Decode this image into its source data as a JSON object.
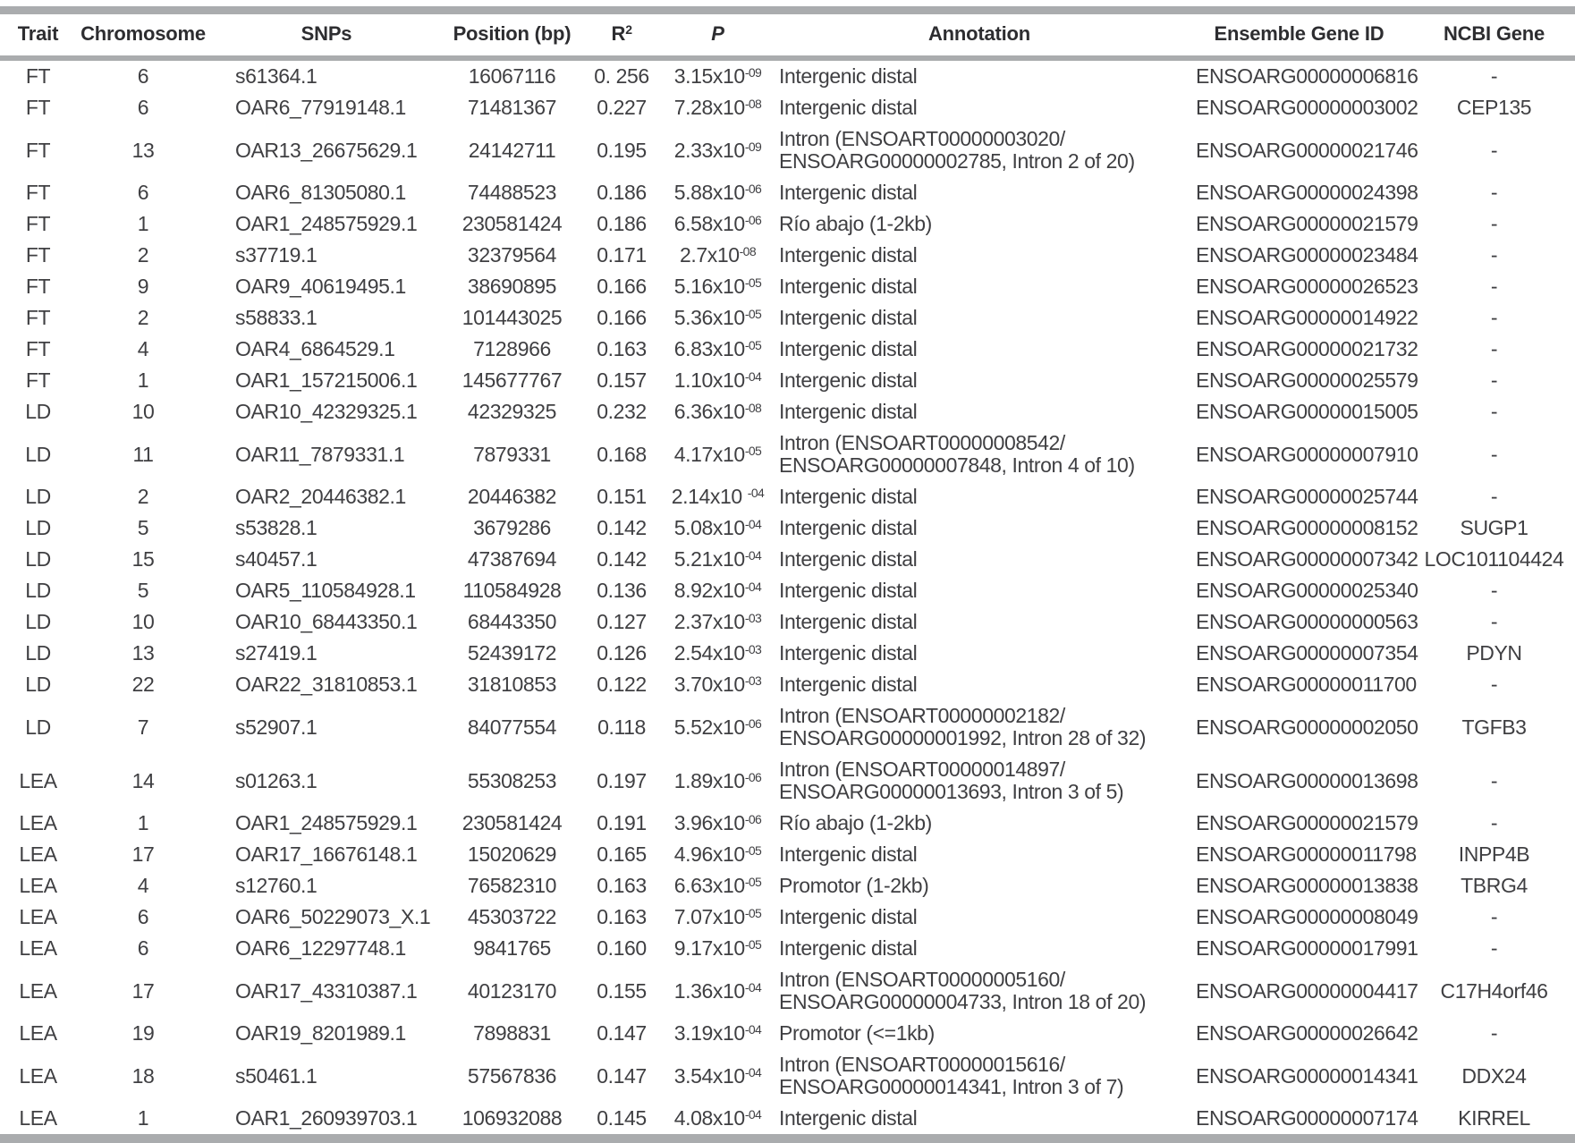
{
  "table": {
    "header": {
      "trait": "Trait",
      "chromosome": "Chromosome",
      "snps": "SNPs",
      "position": "Position (bp)",
      "r2_base": "R",
      "r2_sup": "2",
      "p": "P",
      "annotation": "Annotation",
      "gene_id": "Ensemble Gene ID",
      "ncbi": "NCBI Gene"
    },
    "rows": [
      {
        "trait": "FT",
        "chr": "6",
        "snp": "s61364.1",
        "pos": "16067116",
        "r2": "0. 256",
        "p_base": "3.15x10",
        "p_sup": "-09",
        "ann": [
          "Intergenic distal"
        ],
        "gene": "ENSOARG00000006816",
        "ncbi": "-"
      },
      {
        "trait": "FT",
        "chr": "6",
        "snp": "OAR6_77919148.1",
        "pos": "71481367",
        "r2": "0.227",
        "p_base": "7.28x10",
        "p_sup": "-08",
        "ann": [
          "Intergenic distal"
        ],
        "gene": "ENSOARG00000003002",
        "ncbi": "CEP135"
      },
      {
        "trait": "FT",
        "chr": "13",
        "snp": "OAR13_26675629.1",
        "pos": "24142711",
        "r2": "0.195",
        "p_base": "2.33x10",
        "p_sup": "-09",
        "ann": [
          "Intron (ENSOART00000003020/",
          "ENSOARG00000002785, Intron 2 of 20)"
        ],
        "gene": "ENSOARG00000021746",
        "ncbi": "-"
      },
      {
        "trait": "FT",
        "chr": "6",
        "snp": "OAR6_81305080.1",
        "pos": "74488523",
        "r2": "0.186",
        "p_base": "5.88x10",
        "p_sup": "-06",
        "ann": [
          "Intergenic distal"
        ],
        "gene": "ENSOARG00000024398",
        "ncbi": "-"
      },
      {
        "trait": "FT",
        "chr": "1",
        "snp": "OAR1_248575929.1",
        "pos": "230581424",
        "r2": "0.186",
        "p_base": "6.58x10",
        "p_sup": "-06",
        "ann": [
          "Río abajo (1-2kb)"
        ],
        "gene": "ENSOARG00000021579",
        "ncbi": "-"
      },
      {
        "trait": "FT",
        "chr": "2",
        "snp": "s37719.1",
        "pos": "32379564",
        "r2": "0.171",
        "p_base": "2.7x10",
        "p_sup": "-08",
        "ann": [
          "Intergenic distal"
        ],
        "gene": "ENSOARG00000023484",
        "ncbi": "-"
      },
      {
        "trait": "FT",
        "chr": "9",
        "snp": "OAR9_40619495.1",
        "pos": "38690895",
        "r2": "0.166",
        "p_base": "5.16x10",
        "p_sup": "-05",
        "ann": [
          "Intergenic distal"
        ],
        "gene": "ENSOARG00000026523",
        "ncbi": "-"
      },
      {
        "trait": "FT",
        "chr": "2",
        "snp": "s58833.1",
        "pos": "101443025",
        "r2": "0.166",
        "p_base": "5.36x10",
        "p_sup": "-05",
        "ann": [
          "Intergenic distal"
        ],
        "gene": "ENSOARG00000014922",
        "ncbi": "-"
      },
      {
        "trait": "FT",
        "chr": "4",
        "snp": "OAR4_6864529.1",
        "pos": "7128966",
        "r2": "0.163",
        "p_base": "6.83x10",
        "p_sup": "-05",
        "ann": [
          "Intergenic distal"
        ],
        "gene": "ENSOARG00000021732",
        "ncbi": "-"
      },
      {
        "trait": "FT",
        "chr": "1",
        "snp": "OAR1_157215006.1",
        "pos": "145677767",
        "r2": "0.157",
        "p_base": "1.10x10",
        "p_sup": "-04",
        "ann": [
          "Intergenic distal"
        ],
        "gene": "ENSOARG00000025579",
        "ncbi": "-"
      },
      {
        "trait": "LD",
        "chr": "10",
        "snp": "OAR10_42329325.1",
        "pos": "42329325",
        "r2": "0.232",
        "p_base": "6.36x10",
        "p_sup": "-08",
        "ann": [
          "Intergenic distal"
        ],
        "gene": "ENSOARG00000015005",
        "ncbi": "-"
      },
      {
        "trait": "LD",
        "chr": "11",
        "snp": "OAR11_7879331.1",
        "pos": "7879331",
        "r2": "0.168",
        "p_base": "4.17x10",
        "p_sup": "-05",
        "ann": [
          "Intron (ENSOART00000008542/",
          "ENSOARG00000007848, Intron 4 of 10)"
        ],
        "gene": "ENSOARG00000007910",
        "ncbi": "-"
      },
      {
        "trait": "LD",
        "chr": "2",
        "snp": "OAR2_20446382.1",
        "pos": "20446382",
        "r2": "0.151",
        "p_base": "2.14x10 ",
        "p_sup": "-04",
        "ann": [
          "Intergenic distal"
        ],
        "gene": "ENSOARG00000025744",
        "ncbi": "-"
      },
      {
        "trait": "LD",
        "chr": "5",
        "snp": "s53828.1",
        "pos": "3679286",
        "r2": "0.142",
        "p_base": "5.08x10",
        "p_sup": "-04",
        "ann": [
          "Intergenic distal"
        ],
        "gene": "ENSOARG00000008152",
        "ncbi": "SUGP1"
      },
      {
        "trait": "LD",
        "chr": "15",
        "snp": "s40457.1",
        "pos": "47387694",
        "r2": "0.142",
        "p_base": "5.21x10",
        "p_sup": "-04",
        "ann": [
          "Intergenic distal"
        ],
        "gene": "ENSOARG00000007342",
        "ncbi": "LOC101104424"
      },
      {
        "trait": "LD",
        "chr": "5",
        "snp": "OAR5_110584928.1",
        "pos": "110584928",
        "r2": "0.136",
        "p_base": "8.92x10",
        "p_sup": "-04",
        "ann": [
          "Intergenic distal"
        ],
        "gene": "ENSOARG00000025340",
        "ncbi": "-"
      },
      {
        "trait": "LD",
        "chr": "10",
        "snp": "OAR10_68443350.1",
        "pos": "68443350",
        "r2": "0.127",
        "p_base": "2.37x10",
        "p_sup": "-03",
        "ann": [
          "Intergenic distal"
        ],
        "gene": "ENSOARG00000000563",
        "ncbi": "-"
      },
      {
        "trait": "LD",
        "chr": "13",
        "snp": "s27419.1",
        "pos": "52439172",
        "r2": "0.126",
        "p_base": "2.54x10",
        "p_sup": "-03",
        "ann": [
          "Intergenic distal"
        ],
        "gene": "ENSOARG00000007354",
        "ncbi": "PDYN"
      },
      {
        "trait": "LD",
        "chr": "22",
        "snp": "OAR22_31810853.1",
        "pos": "31810853",
        "r2": "0.122",
        "p_base": "3.70x10",
        "p_sup": "-03",
        "ann": [
          "Intergenic distal"
        ],
        "gene": "ENSOARG00000011700",
        "ncbi": "-"
      },
      {
        "trait": "LD",
        "chr": "7",
        "snp": "s52907.1",
        "pos": "84077554",
        "r2": "0.118",
        "p_base": "5.52x10",
        "p_sup": "-06",
        "ann": [
          "Intron (ENSOART00000002182/",
          "ENSOARG00000001992, Intron 28 of 32)"
        ],
        "gene": "ENSOARG00000002050",
        "ncbi": "TGFB3"
      },
      {
        "trait": "LEA",
        "chr": "14",
        "snp": "s01263.1",
        "pos": "55308253",
        "r2": "0.197",
        "p_base": "1.89x10",
        "p_sup": "-06",
        "ann": [
          "Intron (ENSOART00000014897/",
          "ENSOARG00000013693, Intron 3 of 5)"
        ],
        "gene": "ENSOARG00000013698",
        "ncbi": "-"
      },
      {
        "trait": "LEA",
        "chr": "1",
        "snp": "OAR1_248575929.1",
        "pos": "230581424",
        "r2": "0.191",
        "p_base": "3.96x10",
        "p_sup": "-06",
        "ann": [
          "Río abajo (1-2kb)"
        ],
        "gene": "ENSOARG00000021579",
        "ncbi": "-"
      },
      {
        "trait": "LEA",
        "chr": "17",
        "snp": "OAR17_16676148.1",
        "pos": "15020629",
        "r2": "0.165",
        "p_base": "4.96x10",
        "p_sup": "-05",
        "ann": [
          "Intergenic distal"
        ],
        "gene": "ENSOARG00000011798",
        "ncbi": "INPP4B"
      },
      {
        "trait": "LEA",
        "chr": "4",
        "snp": "s12760.1",
        "pos": "76582310",
        "r2": "0.163",
        "p_base": "6.63x10",
        "p_sup": "-05",
        "ann": [
          "Promotor (1-2kb)"
        ],
        "gene": "ENSOARG00000013838",
        "ncbi": "TBRG4"
      },
      {
        "trait": "LEA",
        "chr": "6",
        "snp": "OAR6_50229073_X.1",
        "pos": "45303722",
        "r2": "0.163",
        "p_base": "7.07x10",
        "p_sup": "-05",
        "ann": [
          "Intergenic distal"
        ],
        "gene": "ENSOARG00000008049",
        "ncbi": "-"
      },
      {
        "trait": "LEA",
        "chr": "6",
        "snp": "OAR6_12297748.1",
        "pos": "9841765",
        "r2": "0.160",
        "p_base": "9.17x10",
        "p_sup": "-05",
        "ann": [
          "Intergenic distal"
        ],
        "gene": "ENSOARG00000017991",
        "ncbi": "-"
      },
      {
        "trait": "LEA",
        "chr": "17",
        "snp": "OAR17_43310387.1",
        "pos": "40123170",
        "r2": "0.155",
        "p_base": "1.36x10",
        "p_sup": "-04",
        "ann": [
          "Intron (ENSOART00000005160/",
          "ENSOARG00000004733, Intron 18 of 20)"
        ],
        "gene": "ENSOARG00000004417",
        "ncbi": "C17H4orf46"
      },
      {
        "trait": "LEA",
        "chr": "19",
        "snp": "OAR19_8201989.1",
        "pos": "7898831",
        "r2": "0.147",
        "p_base": "3.19x10",
        "p_sup": "-04",
        "ann": [
          "Promotor (<=1kb)"
        ],
        "gene": "ENSOARG00000026642",
        "ncbi": "-"
      },
      {
        "trait": "LEA",
        "chr": "18",
        "snp": "s50461.1",
        "pos": "57567836",
        "r2": "0.147",
        "p_base": "3.54x10",
        "p_sup": "-04",
        "ann": [
          "Intron (ENSOART00000015616/",
          "ENSOARG00000014341, Intron 3 of 7)"
        ],
        "gene": "ENSOARG00000014341",
        "ncbi": "DDX24"
      },
      {
        "trait": "LEA",
        "chr": "1",
        "snp": "OAR1_260939703.1",
        "pos": "106932088",
        "r2": "0.145",
        "p_base": "4.08x10",
        "p_sup": "-04",
        "ann": [
          "Intergenic distal"
        ],
        "gene": "ENSOARG00000007174",
        "ncbi": "KIRREL"
      }
    ]
  }
}
